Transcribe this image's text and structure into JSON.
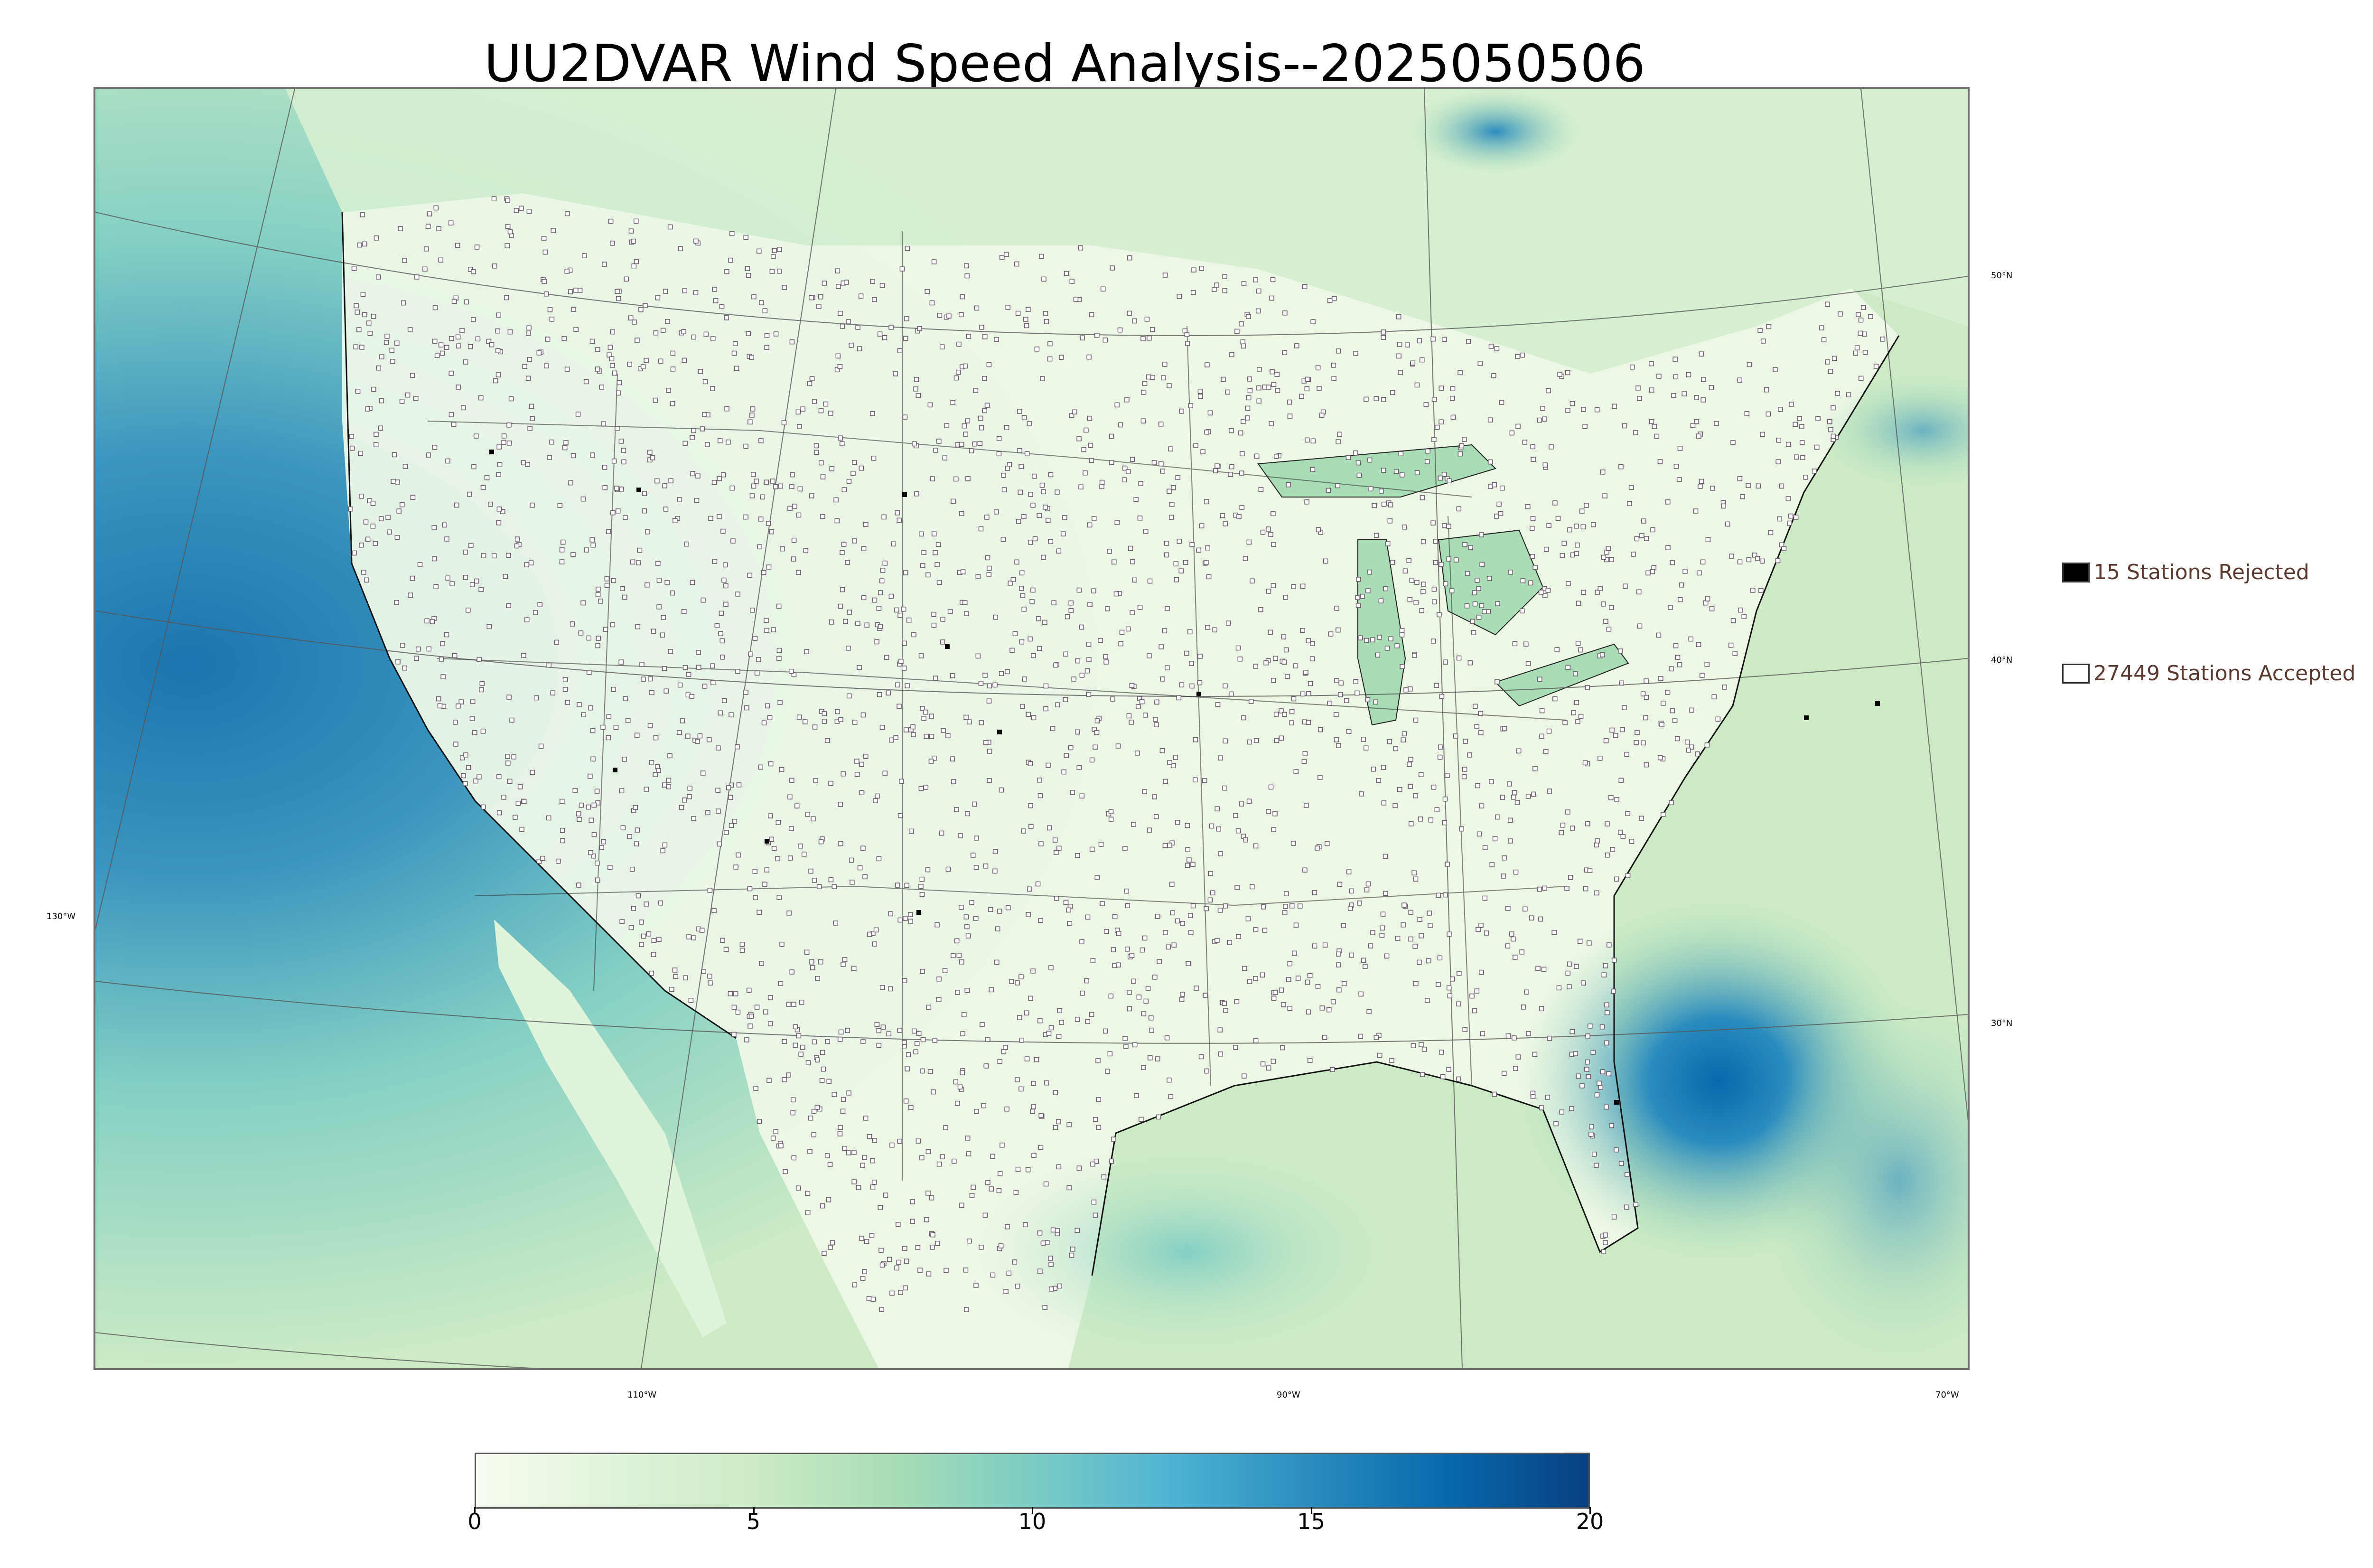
{
  "title": "UU2DVAR Wind Speed Analysis--2025050506",
  "map": {
    "lon_labels": [
      "130°W",
      "110°W",
      "90°W",
      "70°W"
    ],
    "lat_labels": [
      "50°N",
      "40°N",
      "30°N"
    ]
  },
  "legend": {
    "rejected": {
      "label": "15 Stations Rejected",
      "swatch_color": "#000000"
    },
    "accepted": {
      "label": "27449 Stations Accepted",
      "swatch_color": "#ffffff"
    }
  },
  "colorbar": {
    "min": 0,
    "max": 20,
    "tick_labels": [
      "0",
      "5",
      "10",
      "15",
      "20"
    ],
    "colors": [
      "#f7fcf0",
      "#e0f3db",
      "#ccebc5",
      "#a8ddb5",
      "#7bccc4",
      "#4eb3d3",
      "#2b8cbe",
      "#0868ac",
      "#084081"
    ]
  },
  "colors": {
    "water_high": "#2b8cbe",
    "water_max": "#0868ac",
    "land_low": "#eef8e8",
    "station_rejected": "#000000",
    "station_accepted": "#ffffff"
  }
}
